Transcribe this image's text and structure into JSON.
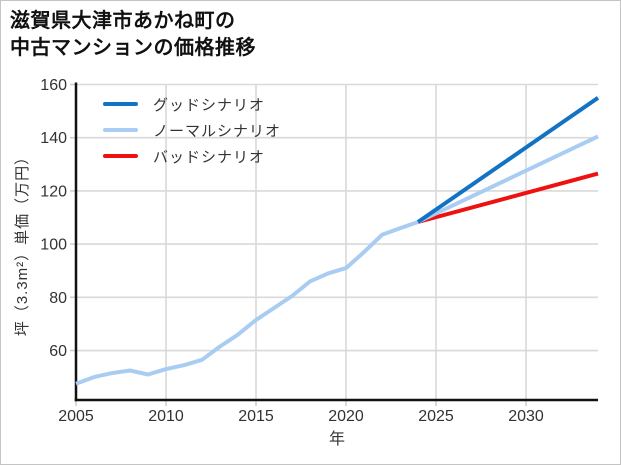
{
  "title": {
    "line1": "滋賀県大津市あかね町の",
    "line2": "中古マンションの価格推移"
  },
  "legend": {
    "items": [
      {
        "label": "グッドシナリオ",
        "color": "#1273c4"
      },
      {
        "label": "ノーマルシナリオ",
        "color": "#a9cdf2"
      },
      {
        "label": "バッドシナリオ",
        "color": "#ee1111"
      }
    ]
  },
  "chart_data": {
    "type": "line",
    "title": "滋賀県大津市あかね町の中古マンションの価格推移",
    "xlabel": "年",
    "ylabel": "坪（3.3m²）単価（万円）",
    "x_ticks": [
      2005,
      2010,
      2015,
      2020,
      2025,
      2030
    ],
    "y_ticks": [
      60,
      80,
      100,
      120,
      140,
      160
    ],
    "x_range": [
      2005,
      2034
    ],
    "y_range": [
      41.4,
      160
    ],
    "grid": true,
    "legend_position": "top-left-inside",
    "colors": {
      "axis": "#111111",
      "gridline": "#d9d9d9",
      "tick": "#cccccc",
      "background": "#ffffff"
    },
    "series": [
      {
        "name": "historical",
        "color": "#a9cdf2",
        "width": 4,
        "points": [
          [
            2005,
            47.5
          ],
          [
            2006,
            50
          ],
          [
            2007,
            51.5
          ],
          [
            2008,
            52.5
          ],
          [
            2009,
            51
          ],
          [
            2010,
            53
          ],
          [
            2011,
            54.5
          ],
          [
            2012,
            56.5
          ],
          [
            2013,
            61.5
          ],
          [
            2014,
            66
          ],
          [
            2015,
            71.5
          ],
          [
            2016,
            76
          ],
          [
            2017,
            80.5
          ],
          [
            2018,
            86
          ],
          [
            2019,
            89
          ],
          [
            2020,
            91
          ],
          [
            2021,
            97
          ],
          [
            2022,
            103.5
          ],
          [
            2023,
            106
          ],
          [
            2024,
            108.3
          ]
        ]
      },
      {
        "name": "バッドシナリオ",
        "color": "#ee1111",
        "width": 4,
        "points": [
          [
            2024,
            108.3
          ],
          [
            2034,
            126.5
          ]
        ]
      },
      {
        "name": "ノーマルシナリオ",
        "color": "#a9cdf2",
        "width": 4,
        "points": [
          [
            2024,
            108.3
          ],
          [
            2034,
            140.5
          ]
        ]
      },
      {
        "name": "グッドシナリオ",
        "color": "#1273c4",
        "width": 4,
        "points": [
          [
            2024,
            108.3
          ],
          [
            2034,
            155
          ]
        ]
      }
    ]
  }
}
